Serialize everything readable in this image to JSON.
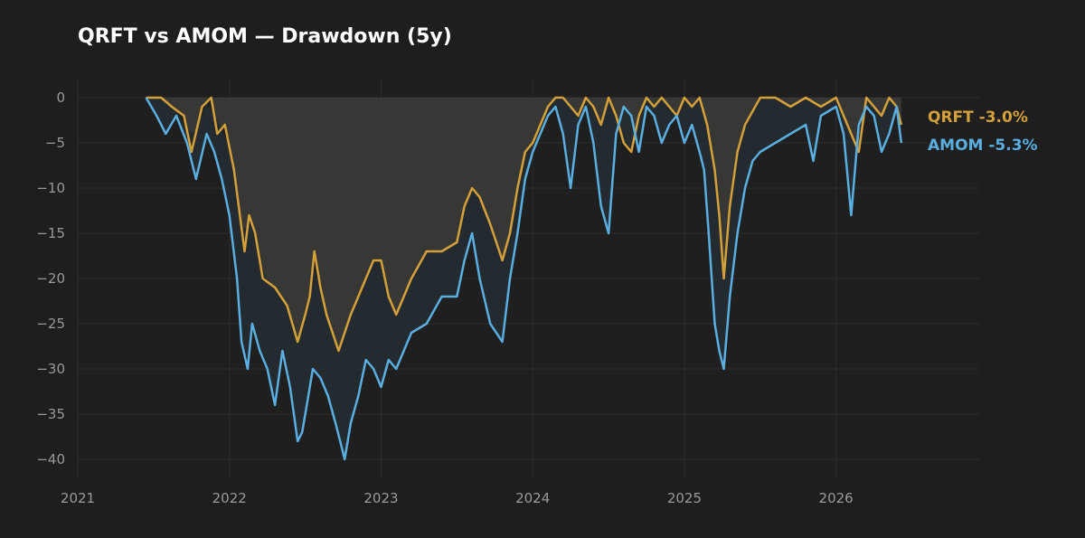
{
  "colors": {
    "background": "#1e1e1e",
    "plot_background": "#1f1f1f",
    "grid": "#2c2c2c",
    "tick_text": "#9a9a9a",
    "title_text": "#ffffff",
    "qrft": "#d4a03a",
    "amom": "#5aaee0",
    "qrft_fill": "#3a3b37",
    "gap_fill": "#252c31"
  },
  "chart_data": {
    "type": "line",
    "title": "QRFT vs AMOM — Drawdown (5y)",
    "xlabel": "",
    "ylabel": "",
    "xlim": [
      2021.0,
      2026.95
    ],
    "ylim": [
      -42,
      2
    ],
    "x_ticks": [
      2021,
      2022,
      2023,
      2024,
      2025,
      2026
    ],
    "x_tick_labels": [
      "2021",
      "2022",
      "2023",
      "2024",
      "2025",
      "2026"
    ],
    "y_ticks": [
      0,
      -5,
      -10,
      -15,
      -20,
      -25,
      -30,
      -35,
      -40
    ],
    "y_tick_labels": [
      "0",
      "−5",
      "−10",
      "−15",
      "−20",
      "−25",
      "−30",
      "−35",
      "−40"
    ],
    "grid": true,
    "legend_position": "right",
    "series": [
      {
        "name": "QRFT",
        "end_label": "-3.0%",
        "x": [
          2021.45,
          2021.55,
          2021.62,
          2021.7,
          2021.75,
          2021.82,
          2021.88,
          2021.92,
          2021.97,
          2022.03,
          2022.1,
          2022.13,
          2022.17,
          2022.22,
          2022.3,
          2022.38,
          2022.45,
          2022.5,
          2022.53,
          2022.56,
          2022.6,
          2022.64,
          2022.68,
          2022.72,
          2022.76,
          2022.8,
          2022.85,
          2022.9,
          2022.95,
          2023.0,
          2023.05,
          2023.1,
          2023.15,
          2023.2,
          2023.3,
          2023.4,
          2023.5,
          2023.55,
          2023.6,
          2023.65,
          2023.72,
          2023.8,
          2023.85,
          2023.9,
          2023.95,
          2024.0,
          2024.05,
          2024.1,
          2024.15,
          2024.2,
          2024.25,
          2024.3,
          2024.35,
          2024.4,
          2024.45,
          2024.5,
          2024.55,
          2024.6,
          2024.65,
          2024.7,
          2024.75,
          2024.8,
          2024.85,
          2024.9,
          2024.95,
          2025.0,
          2025.05,
          2025.1,
          2025.15,
          2025.2,
          2025.23,
          2025.26,
          2025.3,
          2025.35,
          2025.4,
          2025.5,
          2025.6,
          2025.7,
          2025.8,
          2025.9,
          2026.0,
          2026.05,
          2026.1,
          2026.15,
          2026.2,
          2026.25,
          2026.3,
          2026.35,
          2026.4,
          2026.43
        ],
        "values": [
          0,
          0,
          -1,
          -2,
          -6,
          -1,
          0,
          -4,
          -3,
          -8,
          -17,
          -13,
          -15,
          -20,
          -21,
          -23,
          -27,
          -24,
          -22,
          -17,
          -21,
          -24,
          -26,
          -28,
          -26,
          -24,
          -22,
          -20,
          -18,
          -18,
          -22,
          -24,
          -22,
          -20,
          -17,
          -17,
          -16,
          -12,
          -10,
          -11,
          -14,
          -18,
          -15,
          -10,
          -6,
          -5,
          -3,
          -1,
          0,
          0,
          -1,
          -2,
          0,
          -1,
          -3,
          0,
          -2,
          -5,
          -6,
          -2,
          0,
          -1,
          0,
          -1,
          -2,
          0,
          -1,
          0,
          -3,
          -8,
          -13,
          -20,
          -12,
          -6,
          -3,
          0,
          0,
          -1,
          0,
          -1,
          0,
          -2,
          -4,
          -6,
          0,
          -1,
          -2,
          0,
          -1,
          -3
        ]
      },
      {
        "name": "AMOM",
        "end_label": "-5.3%",
        "x": [
          2021.45,
          2021.52,
          2021.58,
          2021.65,
          2021.72,
          2021.78,
          2021.85,
          2021.9,
          2021.95,
          2022.0,
          2022.05,
          2022.08,
          2022.12,
          2022.15,
          2022.2,
          2022.25,
          2022.3,
          2022.35,
          2022.4,
          2022.45,
          2022.48,
          2022.52,
          2022.55,
          2022.6,
          2022.65,
          2022.7,
          2022.73,
          2022.76,
          2022.8,
          2022.85,
          2022.9,
          2022.95,
          2023.0,
          2023.05,
          2023.1,
          2023.15,
          2023.2,
          2023.3,
          2023.4,
          2023.5,
          2023.55,
          2023.6,
          2023.65,
          2023.72,
          2023.8,
          2023.85,
          2023.9,
          2023.95,
          2024.0,
          2024.05,
          2024.1,
          2024.15,
          2024.2,
          2024.25,
          2024.3,
          2024.35,
          2024.4,
          2024.45,
          2024.5,
          2024.55,
          2024.6,
          2024.65,
          2024.7,
          2024.75,
          2024.8,
          2024.85,
          2024.9,
          2024.95,
          2025.0,
          2025.05,
          2025.1,
          2025.13,
          2025.16,
          2025.2,
          2025.23,
          2025.26,
          2025.3,
          2025.35,
          2025.4,
          2025.45,
          2025.5,
          2025.6,
          2025.7,
          2025.8,
          2025.85,
          2025.9,
          2026.0,
          2026.05,
          2026.1,
          2026.15,
          2026.2,
          2026.25,
          2026.3,
          2026.35,
          2026.4,
          2026.43
        ],
        "values": [
          0,
          -2,
          -4,
          -2,
          -5,
          -9,
          -4,
          -6,
          -9,
          -13,
          -20,
          -27,
          -30,
          -25,
          -28,
          -30,
          -34,
          -28,
          -32,
          -38,
          -37,
          -33,
          -30,
          -31,
          -33,
          -36,
          -38,
          -40,
          -36,
          -33,
          -29,
          -30,
          -32,
          -29,
          -30,
          -28,
          -26,
          -25,
          -22,
          -22,
          -18,
          -15,
          -20,
          -25,
          -27,
          -20,
          -15,
          -9,
          -6,
          -4,
          -2,
          -1,
          -4,
          -10,
          -3,
          -1,
          -5,
          -12,
          -15,
          -4,
          -1,
          -2,
          -6,
          -1,
          -2,
          -5,
          -3,
          -2,
          -5,
          -3,
          -6,
          -8,
          -15,
          -25,
          -28,
          -30,
          -22,
          -15,
          -10,
          -7,
          -6,
          -5,
          -4,
          -3,
          -7,
          -2,
          -1,
          -4,
          -13,
          -3,
          -1,
          -2,
          -6,
          -4,
          -1,
          -5
        ]
      }
    ]
  }
}
